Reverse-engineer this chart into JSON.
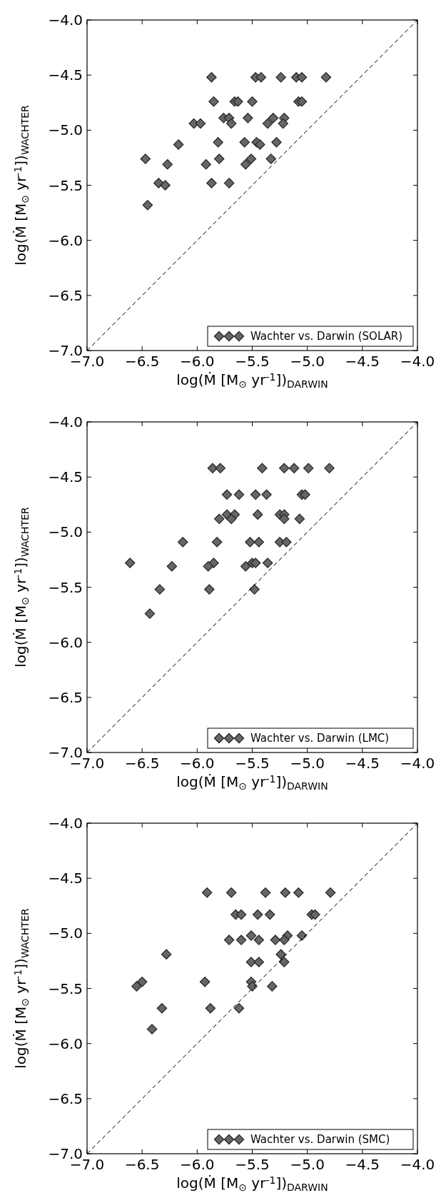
{
  "chart_data": [
    {
      "type": "scatter",
      "xlabel": "log(Ṁ [M$_{⊙}$ yr$^{-1}$])$_{DARWIN}$",
      "ylabel": "log(Ṁ [M$_{⊙}$ yr$^{-1}$])$_{WACHTER}$",
      "xlim": [
        -7,
        -4
      ],
      "ylim": [
        -7,
        -4
      ],
      "xticks": [
        {
          "value": -7,
          "label": "−7.0"
        },
        {
          "value": -6.5,
          "label": "−6.5"
        },
        {
          "value": -6,
          "label": "−6.0"
        },
        {
          "value": -5.5,
          "label": "−5.5"
        },
        {
          "value": -5,
          "label": "−5.0"
        },
        {
          "value": -4.5,
          "label": "−4.5"
        },
        {
          "value": -4,
          "label": "−4.0"
        }
      ],
      "yticks": [
        {
          "value": -7,
          "label": "−7.0"
        },
        {
          "value": -6.5,
          "label": "−6.5"
        },
        {
          "value": -6,
          "label": "−6.0"
        },
        {
          "value": -5.5,
          "label": "−5.5"
        },
        {
          "value": -5,
          "label": "−5.0"
        },
        {
          "value": -4.5,
          "label": "−4.5"
        },
        {
          "value": -4,
          "label": "−4.0"
        }
      ],
      "grid": false,
      "legend": "bottom right",
      "marker": "diamond",
      "series": [
        {
          "name": "Wachter vs. Darwin (SOLAR)",
          "color": "#666666",
          "x": [
            -5.87,
            -5.47,
            -5.42,
            -5.24,
            -5.1,
            -5.05,
            -4.83,
            -5.85,
            -5.66,
            -5.63,
            -5.5,
            -5.08,
            -5.05,
            -5.76,
            -5.71,
            -5.54,
            -5.31,
            -5.21,
            -6.03,
            -5.97,
            -5.69,
            -5.36,
            -5.22,
            -6.17,
            -5.81,
            -5.57,
            -5.46,
            -5.43,
            -5.28,
            -6.47,
            -5.8,
            -5.51,
            -5.33,
            -6.27,
            -5.92,
            -5.56,
            -6.35,
            -6.29,
            -5.87,
            -5.71,
            -6.45
          ],
          "values": [
            -4.52,
            -4.52,
            -4.52,
            -4.52,
            -4.52,
            -4.52,
            -4.52,
            -4.74,
            -4.74,
            -4.74,
            -4.74,
            -4.74,
            -4.74,
            -4.89,
            -4.89,
            -4.89,
            -4.89,
            -4.89,
            -4.94,
            -4.94,
            -4.94,
            -4.94,
            -4.94,
            -5.13,
            -5.11,
            -5.11,
            -5.11,
            -5.13,
            -5.11,
            -5.26,
            -5.26,
            -5.26,
            -5.26,
            -5.31,
            -5.31,
            -5.31,
            -5.48,
            -5.5,
            -5.48,
            -5.48,
            -5.68
          ]
        },
        {
          "type": "line",
          "color": "#000000",
          "line_style": "dashed",
          "marker": "none",
          "x": [
            -7,
            -4
          ],
          "values": [
            -7,
            -4
          ]
        }
      ]
    },
    {
      "type": "scatter",
      "xlabel": "log(Ṁ [M$_{⊙}$ yr$^{-1}$])$_{DARWIN}$",
      "ylabel": "log(Ṁ [M$_{⊙}$ yr$^{-1}$])$_{WACHTER}$",
      "xlim": [
        -7,
        -4
      ],
      "ylim": [
        -7,
        -4
      ],
      "xticks": [
        {
          "value": -7,
          "label": "−7.0"
        },
        {
          "value": -6.5,
          "label": "−6.5"
        },
        {
          "value": -6,
          "label": "−6.0"
        },
        {
          "value": -5.5,
          "label": "−5.5"
        },
        {
          "value": -5,
          "label": "−5.0"
        },
        {
          "value": -4.5,
          "label": "−4.5"
        },
        {
          "value": -4,
          "label": "−4.0"
        }
      ],
      "yticks": [
        {
          "value": -7,
          "label": "−7.0"
        },
        {
          "value": -6.5,
          "label": "−6.5"
        },
        {
          "value": -6,
          "label": "−6.0"
        },
        {
          "value": -5.5,
          "label": "−5.5"
        },
        {
          "value": -5,
          "label": "−5.0"
        },
        {
          "value": -4.5,
          "label": "−4.5"
        },
        {
          "value": -4,
          "label": "−4.0"
        }
      ],
      "grid": false,
      "legend": "bottom right",
      "marker": "diamond",
      "series": [
        {
          "name": "Wachter vs. Darwin (LMC)",
          "color": "#666666",
          "x": [
            -5.86,
            -5.79,
            -5.41,
            -5.21,
            -5.12,
            -4.99,
            -4.8,
            -5.73,
            -5.62,
            -5.47,
            -5.37,
            -5.05,
            -5.02,
            -5.73,
            -5.66,
            -5.45,
            -5.25,
            -5.21,
            -5.8,
            -5.69,
            -5.21,
            -5.07,
            -6.13,
            -5.82,
            -5.52,
            -5.44,
            -5.25,
            -5.19,
            -6.61,
            -5.85,
            -5.5,
            -5.47,
            -5.36,
            -6.23,
            -5.9,
            -5.56,
            -6.34,
            -5.89,
            -5.48,
            -6.43
          ],
          "values": [
            -4.42,
            -4.42,
            -4.42,
            -4.42,
            -4.42,
            -4.42,
            -4.42,
            -4.66,
            -4.66,
            -4.66,
            -4.66,
            -4.66,
            -4.66,
            -4.84,
            -4.84,
            -4.84,
            -4.84,
            -4.84,
            -4.88,
            -4.88,
            -4.88,
            -4.88,
            -5.09,
            -5.09,
            -5.09,
            -5.09,
            -5.09,
            -5.09,
            -5.28,
            -5.28,
            -5.28,
            -5.28,
            -5.28,
            -5.31,
            -5.31,
            -5.31,
            -5.52,
            -5.52,
            -5.52,
            -5.74
          ]
        },
        {
          "type": "line",
          "color": "#000000",
          "line_style": "dashed",
          "marker": "none",
          "x": [
            -7,
            -4
          ],
          "values": [
            -7,
            -4
          ]
        }
      ]
    },
    {
      "type": "scatter",
      "xlabel": "log(Ṁ [M$_{⊙}$ yr$^{-1}$])$_{DARWIN}$",
      "ylabel": "log(Ṁ [M$_{⊙}$ yr$^{-1}$])$_{WACHTER}$",
      "xlim": [
        -7,
        -4
      ],
      "ylim": [
        -7,
        -4
      ],
      "xticks": [
        {
          "value": -7,
          "label": "−7.0"
        },
        {
          "value": -6.5,
          "label": "−6.5"
        },
        {
          "value": -6,
          "label": "−6.0"
        },
        {
          "value": -5.5,
          "label": "−5.5"
        },
        {
          "value": -5,
          "label": "−5.0"
        },
        {
          "value": -4.5,
          "label": "−4.5"
        },
        {
          "value": -4,
          "label": "−4.0"
        }
      ],
      "yticks": [
        {
          "value": -7,
          "label": "−7.0"
        },
        {
          "value": -6.5,
          "label": "−6.5"
        },
        {
          "value": -6,
          "label": "−6.0"
        },
        {
          "value": -5.5,
          "label": "−5.5"
        },
        {
          "value": -5,
          "label": "−5.0"
        },
        {
          "value": -4.5,
          "label": "−4.5"
        },
        {
          "value": -4,
          "label": "−4.0"
        }
      ],
      "grid": false,
      "legend": "bottom right",
      "marker": "diamond",
      "series": [
        {
          "name": "Wachter vs. Darwin (SMC)",
          "color": "#666666",
          "x": [
            -5.91,
            -5.69,
            -5.38,
            -5.2,
            -5.08,
            -4.79,
            -5.65,
            -5.6,
            -5.45,
            -5.34,
            -4.96,
            -4.93,
            -5.51,
            -5.18,
            -5.05,
            -5.71,
            -5.6,
            -5.44,
            -5.29,
            -5.21,
            -6.28,
            -5.24,
            -5.51,
            -5.44,
            -5.21,
            -6.5,
            -5.93,
            -5.51,
            -6.55,
            -5.5,
            -5.32,
            -6.32,
            -5.88,
            -5.62,
            -6.41
          ],
          "values": [
            -4.63,
            -4.63,
            -4.63,
            -4.63,
            -4.63,
            -4.63,
            -4.83,
            -4.83,
            -4.83,
            -4.83,
            -4.83,
            -4.83,
            -5.02,
            -5.02,
            -5.02,
            -5.06,
            -5.06,
            -5.06,
            -5.06,
            -5.06,
            -5.19,
            -5.19,
            -5.26,
            -5.26,
            -5.26,
            -5.44,
            -5.44,
            -5.44,
            -5.48,
            -5.48,
            -5.48,
            -5.68,
            -5.68,
            -5.68,
            -5.87
          ]
        },
        {
          "type": "line",
          "color": "#000000",
          "line_style": "dashed",
          "marker": "none",
          "x": [
            -7,
            -4
          ],
          "values": [
            -7,
            -4
          ]
        }
      ]
    }
  ]
}
